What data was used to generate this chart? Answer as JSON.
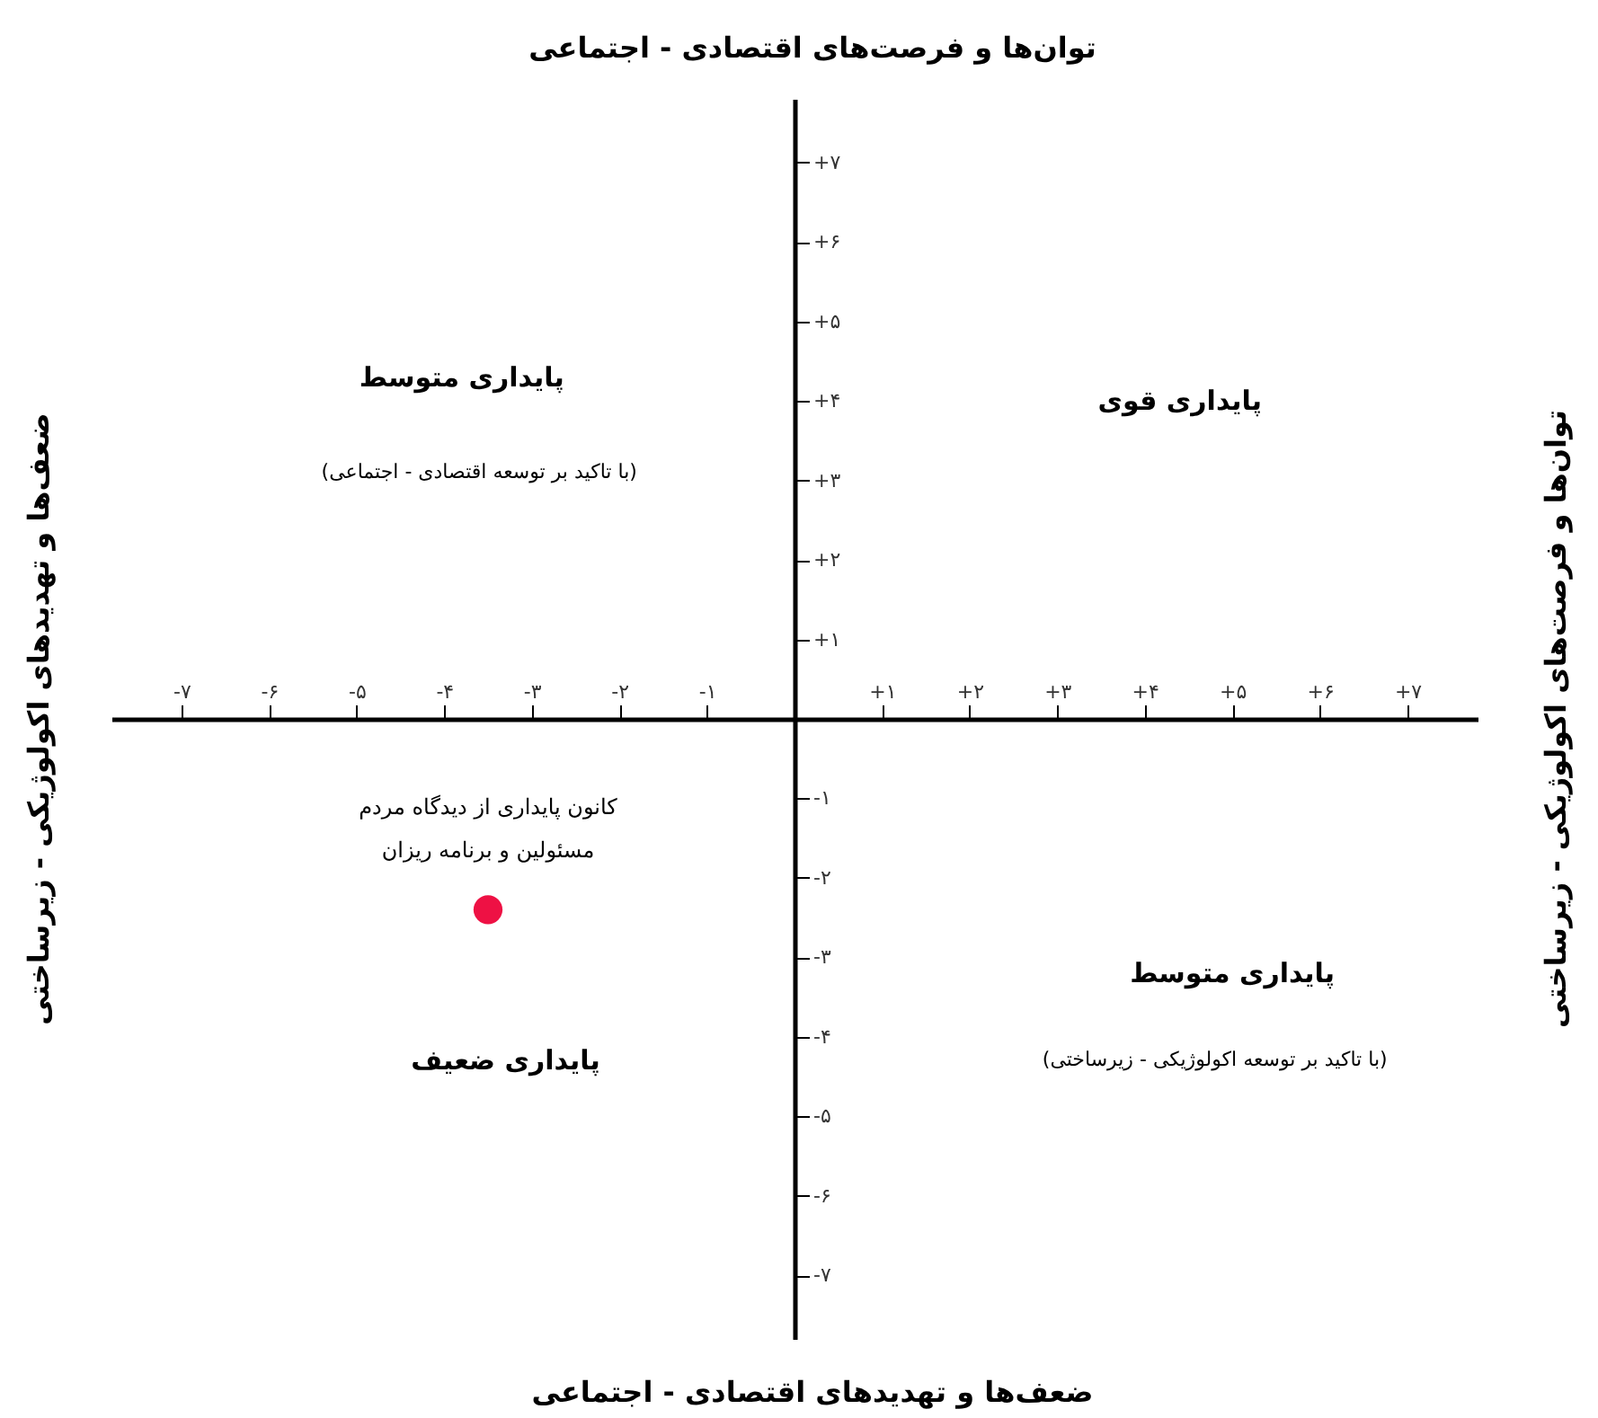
{
  "chart_data": {
    "type": "scatter",
    "annotations": [
      "توان‌ها و فرصت‌های اقتصادی - اجتماعی",
      "ضعف‌ها و تهدیدهای اقتصادی - اجتماعی",
      "ضعف‌ها و تهدیدهای اکولوژیکی - زیرساختی",
      "توان‌ها و فرصت‌های اکولوژیکی - زیرساختی",
      "پایداری متوسط",
      "(با تاکید بر توسعه اقتصادی - اجتماعی)",
      "پایداری قوی",
      "پایداری متوسط",
      "(با تاکید بر توسعه اکولوژیکی - زیرساختی)",
      "پایداری ضعیف"
    ],
    "series": [
      {
        "name": "کانون پایداری از دیدگاه مردم مسئولین و برنامه ریزان",
        "color": "#ee1144",
        "x": [
          -3.5
        ],
        "values": [
          -2.4
        ]
      }
    ],
    "xlim": [
      -7.8,
      7.8
    ],
    "ylim": [
      -7.8,
      7.8
    ],
    "xticks": [
      {
        "value": -7,
        "label": "-۷"
      },
      {
        "value": -6,
        "label": "-۶"
      },
      {
        "value": -5,
        "label": "-۵"
      },
      {
        "value": -4,
        "label": "-۴"
      },
      {
        "value": -3,
        "label": "-۳"
      },
      {
        "value": -2,
        "label": "-۲"
      },
      {
        "value": -1,
        "label": "-۱"
      },
      {
        "value": 1,
        "label": "+۱"
      },
      {
        "value": 2,
        "label": "+۲"
      },
      {
        "value": 3,
        "label": "+۳"
      },
      {
        "value": 4,
        "label": "+۴"
      },
      {
        "value": 5,
        "label": "+۵"
      },
      {
        "value": 6,
        "label": "+۶"
      },
      {
        "value": 7,
        "label": "+۷"
      }
    ],
    "yticks": [
      {
        "value": -7,
        "label": "-۷"
      },
      {
        "value": -6,
        "label": "-۶"
      },
      {
        "value": -5,
        "label": "-۵"
      },
      {
        "value": -4,
        "label": "-۴"
      },
      {
        "value": -3,
        "label": "-۳"
      },
      {
        "value": -2,
        "label": "-۲"
      },
      {
        "value": -1,
        "label": "-۱"
      },
      {
        "value": 1,
        "label": "+۱"
      },
      {
        "value": 2,
        "label": "+۲"
      },
      {
        "value": 3,
        "label": "+۳"
      },
      {
        "value": 4,
        "label": "+۴"
      },
      {
        "value": 5,
        "label": "+۵"
      },
      {
        "value": 6,
        "label": "+۶"
      },
      {
        "value": 7,
        "label": "+۷"
      }
    ],
    "grid": false,
    "marker": "circle"
  }
}
